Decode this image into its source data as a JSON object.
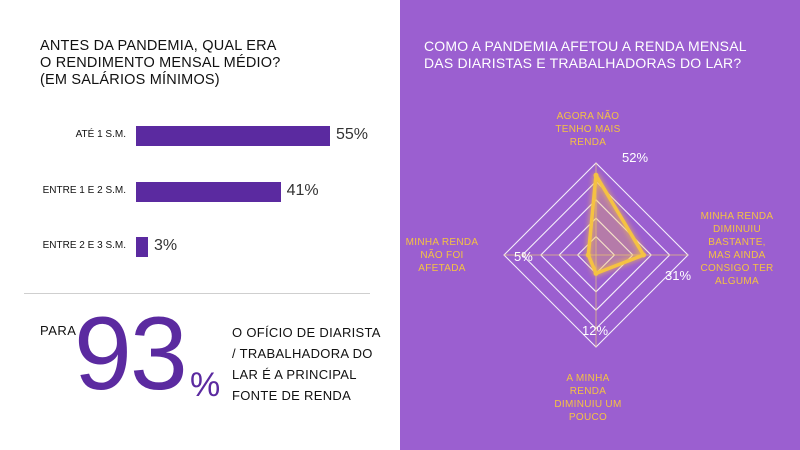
{
  "left": {
    "title_lines": [
      "ANTES DA PANDEMIA, QUAL ERA",
      "O RENDIMENTO MENSAL MÉDIO?",
      "(EM SALÁRIOS MÍNIMOS)"
    ],
    "para_label": "PARA",
    "big_number": "93",
    "big_percent": "%",
    "description_lines": [
      "O OFÍCIO DE DIARISTA",
      "/ TRABALHADORA DO",
      "LAR É A PRINCIPAL",
      "FONTE DE RENDA"
    ]
  },
  "right": {
    "title_lines": [
      "COMO A PANDEMIA AFETOU A RENDA MENSAL",
      "DAS DIARISTAS E TRABALHADORAS DO LAR?"
    ]
  },
  "colors": {
    "bar": "#5b2aa0",
    "panel": "#9b5fd0",
    "highlight": "#f5c242"
  },
  "chart_data": [
    {
      "type": "bar",
      "orientation": "horizontal",
      "categories": [
        "ATÉ 1 S.M.",
        "ENTRE 1 E 2 S.M.",
        "ENTRE 2 E 3 S.M."
      ],
      "values": [
        55,
        41,
        3
      ],
      "value_labels": [
        "55%",
        "41%",
        "3%"
      ],
      "xlim": [
        0,
        60
      ],
      "grid": false
    },
    {
      "type": "radar",
      "axes": [
        {
          "label_lines": [
            "AGORA NÃO",
            "TENHO MAIS",
            "RENDA"
          ],
          "value": 52,
          "value_label": "52%"
        },
        {
          "label_lines": [
            "MINHA RENDA",
            "DIMINUIU",
            "BASTANTE,",
            "MAS AINDA",
            "CONSIGO TER",
            "ALGUMA"
          ],
          "value": 31,
          "value_label": "31%"
        },
        {
          "label_lines": [
            "A MINHA",
            "RENDA",
            "DIMINUIU UM",
            "POUCO"
          ],
          "value": 12,
          "value_label": "12%"
        },
        {
          "label_lines": [
            "MINHA RENDA",
            "NÃO FOI",
            "AFETADA"
          ],
          "value": 5,
          "value_label": "5%"
        }
      ],
      "rlim": [
        0,
        60
      ],
      "rings": 5
    }
  ]
}
